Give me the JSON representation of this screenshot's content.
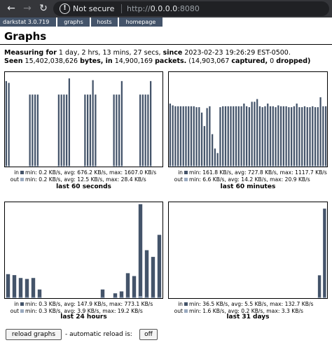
{
  "browser": {
    "security_label": "Not secure",
    "url_scheme": "http://",
    "url_host": "0.0.0.0",
    "url_port": ":8080"
  },
  "menu": {
    "brand": "darkstat 3.0.719",
    "items": [
      "graphs",
      "hosts",
      "homepage"
    ]
  },
  "page": {
    "title": "Graphs",
    "measuring_label": "Measuring for",
    "duration": " 1 day, 2 hrs, 13 mins, 27 secs, ",
    "since_label": "since",
    "since_value": " 2023-02-23 19:26:29 EST-0500.",
    "seen_label": "Seen",
    "bytes_value": " 15,402,038,626 ",
    "bytes_label": "bytes, in",
    "packets_value": " 14,900,169 ",
    "packets_label": "packets.",
    "captured_text": " (14,903,067 ",
    "captured_label": "captured,",
    "dropped_text": " 0 ",
    "dropped_label": "dropped)"
  },
  "colors": {
    "in": "#44546a",
    "out": "#9aaac0"
  },
  "graphs": [
    {
      "caption": "last 60 seconds",
      "in_label": "in",
      "in_stats": "min: 0.2 KB/s, avg: 676.2 KB/s, max: 1607.0 KB/s",
      "out_label": "out",
      "out_stats": "min: 0.2 KB/s, avg: 12.5 KB/s, max: 28.4 KB/s"
    },
    {
      "caption": "last 60 minutes",
      "in_label": "in",
      "in_stats": "min: 161.8 KB/s, avg: 727.8 KB/s, max: 1117.7 KB/s",
      "out_label": "out",
      "out_stats": "min: 6.6 KB/s, avg: 14.2 KB/s, max: 20.9 KB/s"
    },
    {
      "caption": "last 24 hours",
      "in_label": "in",
      "in_stats": "min: 0.3 KB/s, avg: 147.9 KB/s, max: 773.1 KB/s",
      "out_label": "out",
      "out_stats": "min: 0.3 KB/s, avg: 3.9 KB/s, max: 19.2 KB/s"
    },
    {
      "caption": "last 31 days",
      "in_label": "in",
      "in_stats": "min: 36.5 KB/s, avg: 5.5 KB/s, max: 132.7 KB/s",
      "out_label": "out",
      "out_stats": "min: 1.6 KB/s, avg: 0.2 KB/s, max: 3.3 KB/s"
    }
  ],
  "chart_data": [
    {
      "type": "bar",
      "ylim": [
        0,
        1.05
      ],
      "values": [
        0.95,
        0.93,
        0,
        0,
        0,
        0,
        0,
        0,
        0,
        0.8,
        0.8,
        0.8,
        0.8,
        0,
        0,
        0,
        0,
        0,
        0,
        0,
        0.8,
        0.8,
        0.8,
        0.8,
        0.98,
        0,
        0,
        0,
        0,
        0,
        0.8,
        0.8,
        0.8,
        0.96,
        0.8,
        0,
        0,
        0,
        0,
        0,
        0,
        0.8,
        0.8,
        0.8,
        0.95,
        0,
        0,
        0,
        0,
        0,
        0,
        0.8,
        0.8,
        0.8,
        0.8,
        0.95,
        0,
        0,
        0,
        0
      ],
      "out_values": [
        0.01,
        0.01,
        0,
        0,
        0,
        0,
        0,
        0,
        0,
        0.01,
        0.01,
        0.01,
        0.01,
        0,
        0,
        0,
        0,
        0,
        0,
        0,
        0.01,
        0.01,
        0.01,
        0.01,
        0.01,
        0,
        0,
        0,
        0,
        0,
        0.01,
        0.01,
        0.01,
        0.01,
        0.01,
        0,
        0,
        0,
        0,
        0,
        0,
        0.01,
        0.01,
        0.01,
        0.01,
        0,
        0,
        0,
        0,
        0,
        0,
        0.01,
        0.01,
        0.01,
        0.01,
        0.01,
        0,
        0,
        0,
        0
      ]
    },
    {
      "type": "bar",
      "ylim": [
        0,
        1.05
      ],
      "values": [
        0.7,
        0.68,
        0.67,
        0.67,
        0.67,
        0.67,
        0.67,
        0.67,
        0.67,
        0.67,
        0.66,
        0.66,
        0.6,
        0.45,
        0.65,
        0.67,
        0.36,
        0.2,
        0.15,
        0.66,
        0.67,
        0.67,
        0.67,
        0.67,
        0.67,
        0.67,
        0.67,
        0.67,
        0.7,
        0.67,
        0.66,
        0.72,
        0.72,
        0.75,
        0.67,
        0.66,
        0.67,
        0.7,
        0.67,
        0.67,
        0.66,
        0.68,
        0.67,
        0.67,
        0.67,
        0.66,
        0.66,
        0.67,
        0.7,
        0.66,
        0.66,
        0.67,
        0.66,
        0.66,
        0.67,
        0.66,
        0.66,
        0.77,
        0.67,
        0.67
      ],
      "out_values": [
        0.01,
        0.01,
        0.01,
        0.01,
        0.01,
        0.01,
        0.01,
        0.01,
        0.01,
        0.01,
        0.01,
        0.01,
        0.01,
        0.01,
        0.01,
        0.01,
        0.01,
        0.01,
        0.01,
        0.01,
        0.01,
        0.01,
        0.01,
        0.01,
        0.01,
        0.01,
        0.01,
        0.01,
        0.01,
        0.01,
        0.01,
        0.01,
        0.01,
        0.01,
        0.01,
        0.01,
        0.01,
        0.01,
        0.01,
        0.01,
        0.01,
        0.01,
        0.01,
        0.01,
        0.01,
        0.01,
        0.01,
        0.01,
        0.01,
        0.01,
        0.01,
        0.01,
        0.01,
        0.01,
        0.01,
        0.01,
        0.01,
        0.01,
        0.01,
        0.01
      ]
    },
    {
      "type": "bar",
      "ylim": [
        0,
        1.0
      ],
      "values": [
        0.25,
        0.24,
        0.21,
        0.2,
        0.21,
        0.09,
        0,
        0,
        0,
        0,
        0,
        0,
        0,
        0,
        0,
        0.09,
        0,
        0.05,
        0.07,
        0.26,
        0.23,
        0.98,
        0.5,
        0.43,
        0.66
      ],
      "out_values": [
        0.01,
        0.01,
        0.01,
        0.01,
        0.01,
        0.01,
        0,
        0,
        0,
        0,
        0,
        0,
        0,
        0,
        0,
        0.01,
        0,
        0.01,
        0.01,
        0.01,
        0.01,
        0.02,
        0.01,
        0.01,
        0.01
      ]
    },
    {
      "type": "bar",
      "ylim": [
        0,
        1.05
      ],
      "values": [
        0,
        0,
        0,
        0,
        0,
        0,
        0,
        0,
        0,
        0,
        0,
        0,
        0,
        0,
        0,
        0,
        0,
        0,
        0,
        0,
        0,
        0,
        0,
        0,
        0,
        0,
        0,
        0,
        0,
        0.25,
        0.98
      ],
      "out_values": [
        0,
        0,
        0,
        0,
        0,
        0,
        0,
        0,
        0,
        0,
        0,
        0,
        0,
        0,
        0,
        0,
        0,
        0,
        0,
        0,
        0,
        0,
        0,
        0,
        0,
        0,
        0,
        0,
        0,
        0.01,
        0.01
      ]
    }
  ],
  "controls": {
    "reload_label": "reload graphs",
    "auto_reload_label": " - automatic reload is: ",
    "auto_reload_state": "off"
  }
}
